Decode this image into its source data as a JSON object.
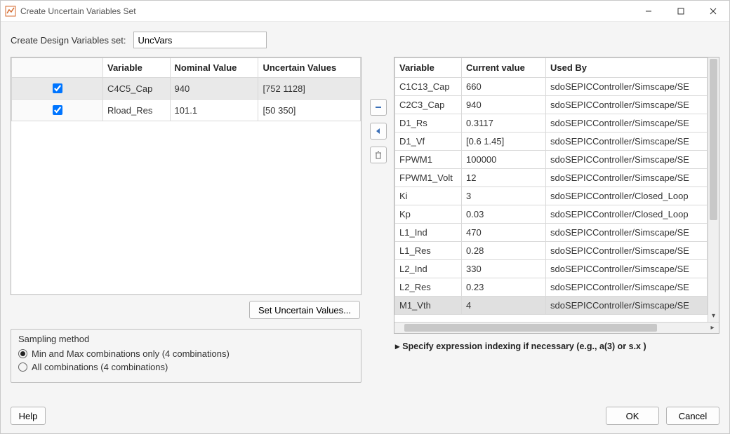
{
  "window": {
    "title": "Create Uncertain Variables Set"
  },
  "setname": {
    "label": "Create Design Variables set:",
    "value": "UncVars"
  },
  "left_table": {
    "columns": [
      "",
      "Variable",
      "Nominal Value",
      "Uncertain Values"
    ],
    "rows": [
      {
        "checked": true,
        "variable": "C4C5_Cap",
        "nominal": "940",
        "uncertain": "[752 1128]",
        "selected": true
      },
      {
        "checked": true,
        "variable": "Rload_Res",
        "nominal": "101.1",
        "uncertain": "[50 350]",
        "selected": false
      }
    ]
  },
  "set_uncertain_button": "Set Uncertain Values...",
  "sampling": {
    "legend": "Sampling method",
    "options": [
      {
        "label": "Min and Max combinations only (4 combinations)",
        "checked": true
      },
      {
        "label": "All combinations (4 combinations)",
        "checked": false
      }
    ]
  },
  "right_table": {
    "columns": [
      "Variable",
      "Current value",
      "Used By"
    ],
    "rows": [
      {
        "variable": "C1C13_Cap",
        "value": "660",
        "used": "sdoSEPICController/Simscape/SE",
        "selected": false
      },
      {
        "variable": "C2C3_Cap",
        "value": "940",
        "used": "sdoSEPICController/Simscape/SE",
        "selected": false
      },
      {
        "variable": "D1_Rs",
        "value": "0.3117",
        "used": "sdoSEPICController/Simscape/SE",
        "selected": false
      },
      {
        "variable": "D1_Vf",
        "value": "[0.6 1.45]",
        "used": "sdoSEPICController/Simscape/SE",
        "selected": false
      },
      {
        "variable": "FPWM1",
        "value": "100000",
        "used": "sdoSEPICController/Simscape/SE",
        "selected": false
      },
      {
        "variable": "FPWM1_Volt",
        "value": "12",
        "used": "sdoSEPICController/Simscape/SE",
        "selected": false
      },
      {
        "variable": "Ki",
        "value": "3",
        "used": "sdoSEPICController/Closed_Loop",
        "selected": false
      },
      {
        "variable": "Kp",
        "value": "0.03",
        "used": "sdoSEPICController/Closed_Loop",
        "selected": false
      },
      {
        "variable": "L1_Ind",
        "value": "470",
        "used": "sdoSEPICController/Simscape/SE",
        "selected": false
      },
      {
        "variable": "L1_Res",
        "value": "0.28",
        "used": "sdoSEPICController/Simscape/SE",
        "selected": false
      },
      {
        "variable": "L2_Ind",
        "value": "330",
        "used": "sdoSEPICController/Simscape/SE",
        "selected": false
      },
      {
        "variable": "L2_Res",
        "value": "0.23",
        "used": "sdoSEPICController/Simscape/SE",
        "selected": false
      },
      {
        "variable": "M1_Vth",
        "value": "4",
        "used": "sdoSEPICController/Simscape/SE",
        "selected": true
      }
    ]
  },
  "expander_label": "Specify expression indexing if necessary (e.g., a(3) or s.x )",
  "footer": {
    "help": "Help",
    "ok": "OK",
    "cancel": "Cancel"
  },
  "icons": {
    "minimize": "minimize-icon",
    "maximize": "maximize-icon",
    "close": "close-icon",
    "remove": "remove-icon",
    "move_left": "arrow-left-icon",
    "trash": "trash-icon"
  },
  "colors": {
    "window_bg": "#f5f5f5",
    "border": "#b5b5b5",
    "header_bg": "#ffffff",
    "row_selected": "#e9e9e9",
    "scrollbar_thumb": "#c8c8c8"
  }
}
